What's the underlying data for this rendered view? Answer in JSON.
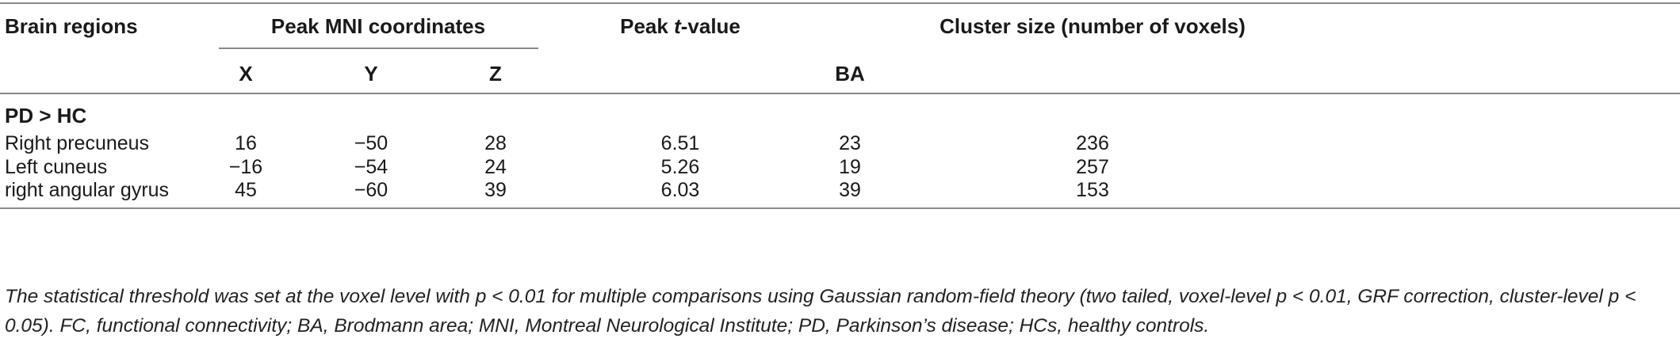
{
  "table": {
    "headers": {
      "brain_regions": "Brain regions",
      "peak_mni": "Peak MNI coordinates",
      "peak_t_prefix": "Peak ",
      "peak_t_italic": "t",
      "peak_t_suffix": "-value",
      "cluster_size": "Cluster size (number of voxels)",
      "x": "X",
      "y": "Y",
      "z": "Z",
      "ba": "BA"
    },
    "group_label": "PD > HC",
    "rows": [
      {
        "region": "Right precuneus",
        "x": "16",
        "y": "−50",
        "z": "28",
        "t": "6.51",
        "ba": "23",
        "cluster": "236"
      },
      {
        "region": "Left cuneus",
        "x": "−16",
        "y": "−54",
        "z": "24",
        "t": "5.26",
        "ba": "19",
        "cluster": "257"
      },
      {
        "region": "right angular gyrus",
        "x": "45",
        "y": "−60",
        "z": "39",
        "t": "6.03",
        "ba": "39",
        "cluster": "153"
      }
    ],
    "footnote": "The statistical threshold was set at the voxel level with p < 0.01 for multiple comparisons using Gaussian random-field theory (two tailed, voxel-level p < 0.01, GRF correction, cluster-level p < 0.05). FC, functional connectivity; BA, Brodmann area; MNI, Montreal Neurological Institute; PD, Parkinson’s disease; HCs, healthy controls."
  }
}
